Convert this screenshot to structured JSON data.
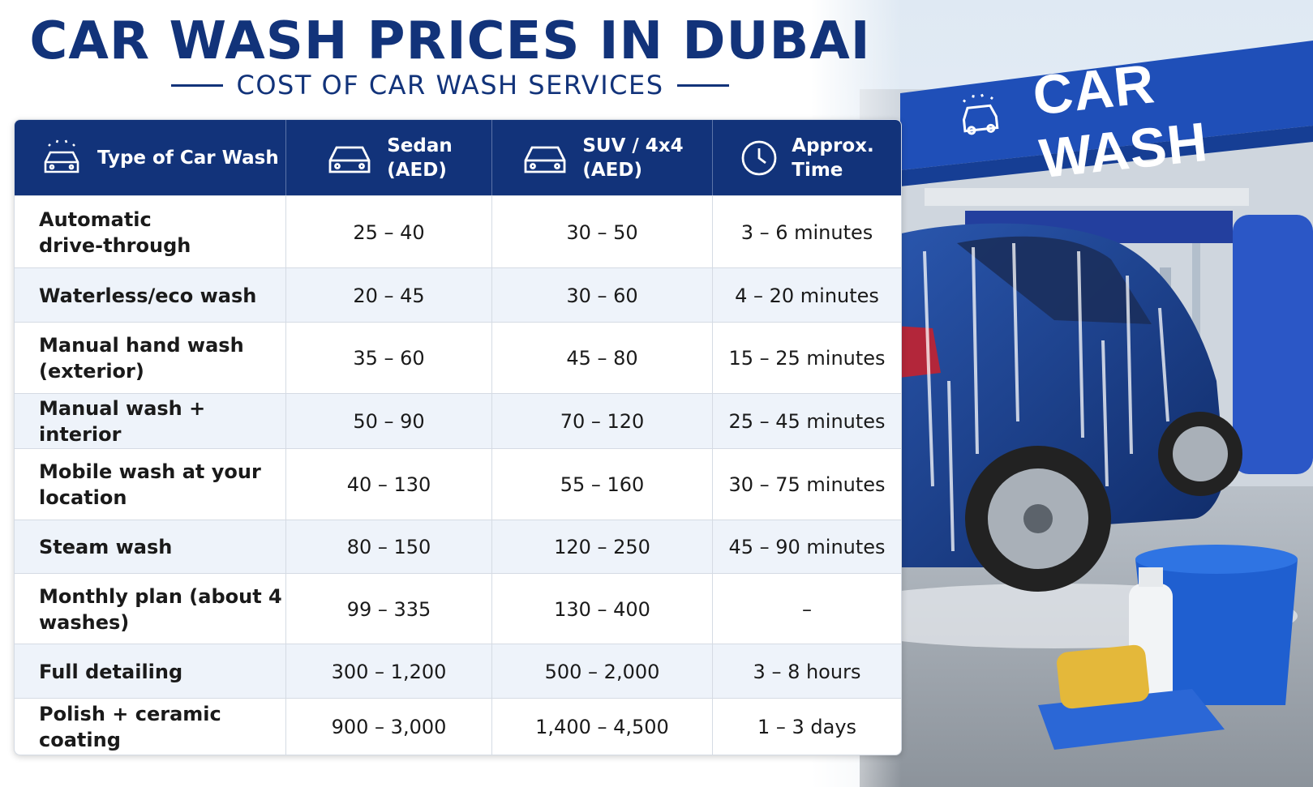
{
  "header": {
    "title": "CAR WASH PRICES IN DUBAI",
    "subtitle": "COST OF CAR WASH SERVICES"
  },
  "sign": {
    "text": "CAR WASH",
    "icon": "car-wash-icon"
  },
  "table": {
    "columns": [
      {
        "label": "Type of Car Wash",
        "icon": "car-wash-icon"
      },
      {
        "label_line1": "Sedan",
        "label_line2": "(AED)",
        "icon": "car-icon"
      },
      {
        "label_line1": "SUV / 4x4",
        "label_line2": "(AED)",
        "icon": "car-icon"
      },
      {
        "label_line1": "Approx.",
        "label_line2": "Time",
        "icon": "clock-icon"
      }
    ],
    "rows": [
      {
        "type_line1": "Automatic",
        "type_line2": "drive-through",
        "sedan": "25 – 40",
        "suv": "30 – 50",
        "time": "3 – 6 minutes"
      },
      {
        "type_line1": "Waterless/eco wash",
        "type_line2": "",
        "sedan": "20 – 45",
        "suv": "30 – 60",
        "time": "4 – 20 minutes"
      },
      {
        "type_line1": "Manual hand wash",
        "type_line2": "(exterior)",
        "sedan": "35 – 60",
        "suv": "45 – 80",
        "time": "15 – 25 minutes"
      },
      {
        "type_line1": "Manual wash + interior",
        "type_line2": "",
        "sedan": "50 – 90",
        "suv": "70 – 120",
        "time": "25 – 45 minutes"
      },
      {
        "type_line1": "Mobile wash at your",
        "type_line2": "location",
        "sedan": "40 – 130",
        "suv": "55 – 160",
        "time": "30 – 75 minutes"
      },
      {
        "type_line1": "Steam wash",
        "type_line2": "",
        "sedan": "80 – 150",
        "suv": "120 – 250",
        "time": "45 – 90 minutes"
      },
      {
        "type_line1": "Monthly plan (about 4",
        "type_line2": "washes)",
        "sedan": "99 – 335",
        "suv": "130 – 400",
        "time": "–"
      },
      {
        "type_line1": "Full detailing",
        "type_line2": "",
        "sedan": "300 – 1,200",
        "suv": "500 – 2,000",
        "time": "3 – 8 hours"
      },
      {
        "type_line1": "Polish + ceramic coating",
        "type_line2": "",
        "sedan": "900 – 3,000",
        "suv": "1,400 – 4,500",
        "time": "1 – 3 days"
      }
    ]
  },
  "colors": {
    "navy": "#12337a",
    "alt_row": "#eef3fa",
    "sign_blue": "#1f4fb8"
  }
}
